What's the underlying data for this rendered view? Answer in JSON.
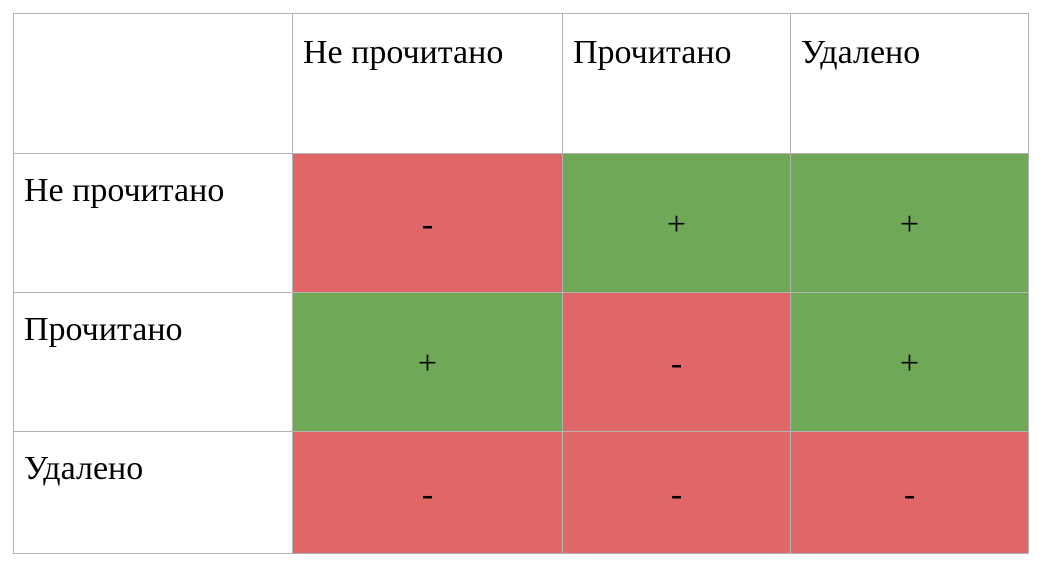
{
  "colors": {
    "allowed": "#6fa857",
    "forbidden": "#df6768",
    "border": "#b3b3b3"
  },
  "columns": [
    "Не прочитано",
    "Прочитано",
    "Удалено"
  ],
  "rows": [
    {
      "label": "Не прочитано",
      "cells": [
        "-",
        "+",
        "+"
      ]
    },
    {
      "label": "Прочитано",
      "cells": [
        "+",
        "-",
        "+"
      ]
    },
    {
      "label": "Удалено",
      "cells": [
        "-",
        "-",
        "-"
      ]
    }
  ]
}
